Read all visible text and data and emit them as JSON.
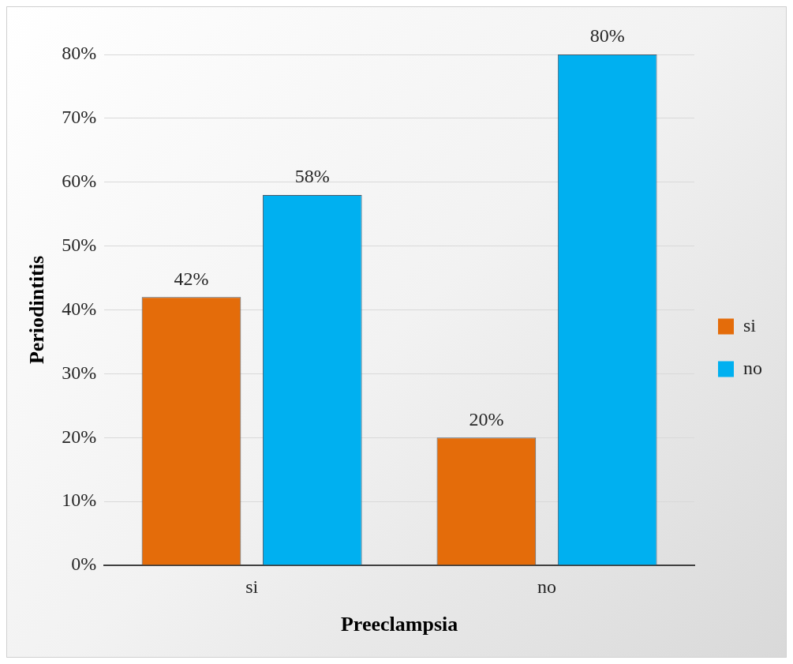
{
  "chart_data": {
    "type": "bar",
    "xlabel": "Preeclampsia",
    "ylabel": "Periodintitis",
    "categories": [
      "si",
      "no"
    ],
    "series": [
      {
        "name": "si",
        "color": "#e46c0a",
        "values": [
          42,
          20
        ],
        "value_labels": [
          "42%",
          "20%"
        ]
      },
      {
        "name": "no",
        "color": "#00b0f0",
        "values": [
          58,
          80
        ],
        "value_labels": [
          "58%",
          "80%"
        ]
      }
    ],
    "ylim": [
      0,
      80
    ],
    "yticks": [
      {
        "value": 0,
        "label": "0%"
      },
      {
        "value": 10,
        "label": "10%"
      },
      {
        "value": 20,
        "label": "20%"
      },
      {
        "value": 30,
        "label": "30%"
      },
      {
        "value": 40,
        "label": "40%"
      },
      {
        "value": 50,
        "label": "50%"
      },
      {
        "value": 60,
        "label": "60%"
      },
      {
        "value": 70,
        "label": "70%"
      },
      {
        "value": 80,
        "label": "80%"
      }
    ],
    "grid": "y",
    "legend": "right"
  }
}
